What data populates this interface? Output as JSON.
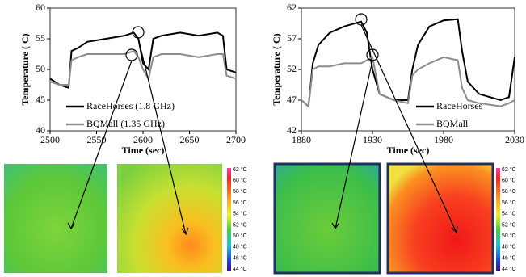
{
  "chart_data": [
    {
      "type": "line",
      "xlabel": "Time (sec)",
      "ylabel": "Temperature ( C)",
      "x": [
        2500,
        2510,
        2520,
        2523,
        2530,
        2540,
        2560,
        2580,
        2590,
        2595,
        2600,
        2606,
        2611,
        2620,
        2640,
        2660,
        2680,
        2686,
        2690,
        2700
      ],
      "series": [
        {
          "name": "RaceHorses (1.8 GHz)",
          "color": "#000000",
          "values": [
            48.5,
            47.5,
            47,
            53,
            53.5,
            54.5,
            55,
            55.5,
            56,
            55,
            51,
            50,
            55,
            55.5,
            56,
            55.5,
            56,
            55.5,
            50,
            49.5
          ]
        },
        {
          "name": "BQMall (1.35 GHz)",
          "color": "#8c8c8c",
          "values": [
            48,
            47.5,
            47.5,
            51.5,
            52,
            52.5,
            52.5,
            52.5,
            53,
            52,
            50,
            48.5,
            52,
            52.5,
            52.5,
            52,
            52.5,
            52.5,
            49,
            48.5
          ]
        }
      ],
      "xlim": [
        2500,
        2700
      ],
      "xticks": [
        2500,
        2550,
        2600,
        2650,
        2700
      ],
      "ylim": [
        40,
        60
      ],
      "yticks": [
        40,
        45,
        50,
        55,
        60
      ],
      "legend": "lower left"
    },
    {
      "type": "line",
      "xlabel": "Time (sec)",
      "ylabel": "Temperature ( C)",
      "x": [
        1880,
        1885,
        1888,
        1892,
        1900,
        1910,
        1922,
        1926,
        1930,
        1935,
        1945,
        1955,
        1958,
        1962,
        1970,
        1980,
        1990,
        1993,
        1997,
        2005,
        2020,
        2026,
        2030
      ],
      "series": [
        {
          "name": "RaceHorses",
          "color": "#000000",
          "values": [
            47,
            46,
            53,
            56,
            58,
            59,
            59.8,
            58,
            52,
            48,
            47,
            47,
            52,
            56,
            59,
            60,
            60.2,
            55,
            50,
            48,
            47,
            47.5,
            54
          ]
        },
        {
          "name": "BQMall",
          "color": "#8c8c8c",
          "values": [
            47,
            46,
            52,
            52.5,
            52.5,
            53,
            53,
            53.5,
            54,
            48,
            47,
            46.5,
            51,
            52,
            53,
            54,
            53.5,
            49,
            47,
            46.5,
            46,
            46.5,
            47
          ]
        }
      ],
      "xlim": [
        1880,
        2030
      ],
      "xticks": [
        1880,
        1930,
        1980,
        2030
      ],
      "ylim": [
        42,
        62
      ],
      "yticks": [
        42,
        47,
        52,
        57,
        62
      ],
      "legend": "lower right"
    }
  ],
  "thermal_scale": {
    "labels": [
      "62 °C",
      "60 °C",
      "58 °C",
      "56 °C",
      "54 °C",
      "52 °C",
      "50 °C",
      "48 °C",
      "46 °C",
      "44 °C"
    ]
  }
}
